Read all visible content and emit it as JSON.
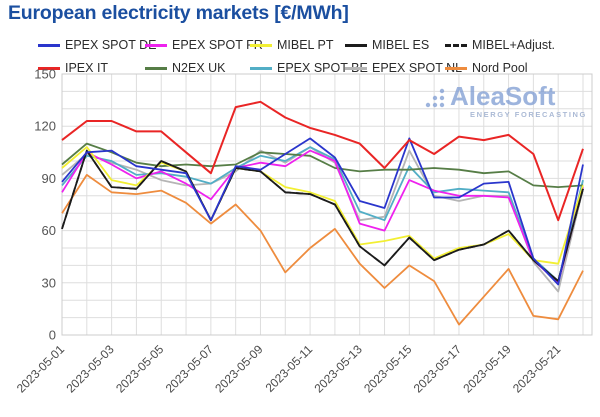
{
  "title": "European electricity markets [€/MWh]",
  "watermark": {
    "name": "AleaSoft",
    "tagline": "ENERGY FORECASTING"
  },
  "axes": {
    "y_tick_labels": [
      "0",
      "30",
      "60",
      "90",
      "120",
      "150"
    ],
    "x_tick_labels": [
      "2023-05-01",
      "2023-05-03",
      "2023-05-05",
      "2023-05-07",
      "2023-05-09",
      "2023-05-11",
      "2023-05-13",
      "2023-05-15",
      "2023-05-17",
      "2023-05-19",
      "2023-05-21"
    ]
  },
  "colors": {
    "title": "#1b4fa0",
    "grid": "#dedede",
    "plot_border": "#cccccc",
    "tick_text": "#555555",
    "watermark": "#7d9bd2"
  },
  "chart_data": {
    "type": "line",
    "x": [
      "2023-05-01",
      "2023-05-02",
      "2023-05-03",
      "2023-05-04",
      "2023-05-05",
      "2023-05-06",
      "2023-05-07",
      "2023-05-08",
      "2023-05-09",
      "2023-05-10",
      "2023-05-11",
      "2023-05-12",
      "2023-05-13",
      "2023-05-14",
      "2023-05-15",
      "2023-05-16",
      "2023-05-17",
      "2023-05-18",
      "2023-05-19",
      "2023-05-20",
      "2023-05-21",
      "2023-05-22"
    ],
    "ylim": [
      0,
      150
    ],
    "y_ticks": [
      0,
      30,
      60,
      90,
      120,
      150
    ],
    "grid": true,
    "legend_position": "top",
    "series": [
      {
        "name": "EPEX SPOT DE",
        "color": "#2a35cc",
        "dash": false,
        "values": [
          88,
          105,
          106,
          97,
          95,
          93,
          66,
          97,
          95,
          104,
          113,
          102,
          77,
          73,
          113,
          79,
          79,
          87,
          88,
          44,
          29,
          98
        ]
      },
      {
        "name": "EPEX SPOT FR",
        "color": "#ee22ee",
        "dash": false,
        "values": [
          82,
          105,
          98,
          90,
          94,
          87,
          78,
          96,
          99,
          97,
          106,
          100,
          64,
          60,
          89,
          83,
          80,
          80,
          79,
          43,
          30,
          85
        ]
      },
      {
        "name": "MIBEL PT",
        "color": "#f2ef33",
        "dash": false,
        "values": [
          96,
          108,
          89,
          86,
          99,
          94,
          66,
          96,
          94,
          85,
          82,
          77,
          52,
          54,
          57,
          44,
          50,
          52,
          58,
          43,
          41,
          86
        ]
      },
      {
        "name": "MIBEL ES",
        "color": "#1c1c1c",
        "dash": false,
        "values": [
          61,
          106,
          85,
          84,
          100,
          94,
          66,
          96,
          94,
          82,
          81,
          75,
          51,
          40,
          56,
          43,
          49,
          52,
          60,
          43,
          31,
          84
        ]
      },
      {
        "name": "MIBEL+Adjust.",
        "color": "#1c1c1c",
        "dash": true,
        "values": [
          61,
          106,
          85,
          84,
          100,
          94,
          66,
          96,
          94,
          82,
          81,
          75,
          51,
          40,
          56,
          43,
          49,
          52,
          60,
          43,
          31,
          84
        ]
      },
      {
        "name": "IPEX IT",
        "color": "#e92525",
        "dash": false,
        "values": [
          112,
          123,
          123,
          117,
          117,
          105,
          93,
          131,
          134,
          125,
          119,
          115,
          110,
          96,
          112,
          104,
          114,
          112,
          115,
          104,
          66,
          107
        ]
      },
      {
        "name": "N2EX UK",
        "color": "#567d46",
        "dash": false,
        "values": [
          98,
          110,
          105,
          99,
          97,
          98,
          97,
          98,
          105,
          104,
          103,
          96,
          94,
          95,
          95,
          96,
          95,
          93,
          94,
          86,
          85,
          86
        ]
      },
      {
        "name": "EPEX SPOT BE",
        "color": "#52aec6",
        "dash": false,
        "values": [
          86,
          103,
          100,
          92,
          93,
          91,
          87,
          96,
          103,
          100,
          108,
          101,
          71,
          66,
          97,
          82,
          84,
          83,
          82,
          44,
          31,
          89
        ]
      },
      {
        "name": "EPEX SPOT NL",
        "color": "#b5b5b5",
        "dash": false,
        "values": [
          92,
          104,
          99,
          95,
          89,
          86,
          87,
          94,
          106,
          99,
          108,
          99,
          66,
          68,
          106,
          80,
          77,
          80,
          80,
          42,
          25,
          84
        ]
      },
      {
        "name": "Nord Pool",
        "color": "#ee8c3e",
        "dash": false,
        "values": [
          70,
          92,
          82,
          81,
          83,
          76,
          64,
          75,
          60,
          36,
          50,
          61,
          41,
          27,
          40,
          31,
          6,
          22,
          38,
          11,
          9,
          37
        ]
      }
    ],
    "draw_order": [
      "EPEX SPOT NL",
      "EPEX SPOT BE",
      "N2EX UK",
      "Nord Pool",
      "EPEX SPOT FR",
      "MIBEL PT",
      "MIBEL+Adjust.",
      "MIBEL ES",
      "EPEX SPOT DE",
      "IPEX IT"
    ]
  }
}
